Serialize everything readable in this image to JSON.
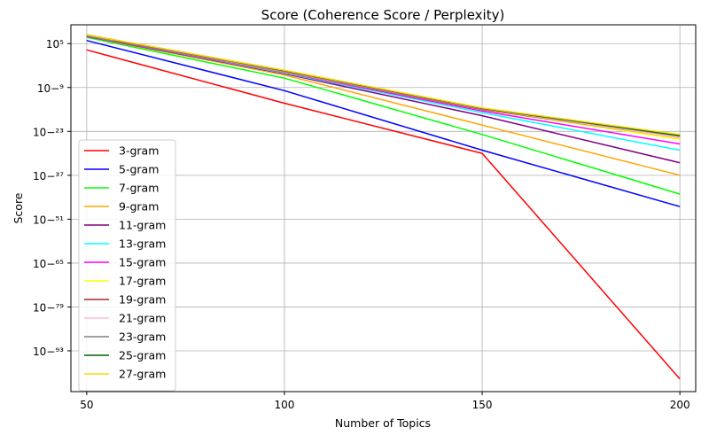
{
  "chart_data": {
    "type": "line",
    "title": "Score (Coherence Score / Perplexity)",
    "xlabel": "Number of Topics",
    "ylabel": "Score",
    "yscale": "log",
    "x": [
      50,
      100,
      150,
      200
    ],
    "xticks": [
      50,
      100,
      150,
      200
    ],
    "xlim": [
      46,
      204
    ],
    "ylim_log10": [
      -106,
      11
    ],
    "yticks_log10": [
      5,
      -9,
      -23,
      -37,
      -51,
      -65,
      -79,
      -93
    ],
    "grid": true,
    "legend_position": "lower-left",
    "series": [
      {
        "name": "3-gram",
        "color": "#ff0000",
        "log10_values": [
          3.0,
          -14.0,
          -30.0,
          -102.0
        ]
      },
      {
        "name": "5-gram",
        "color": "#0000ff",
        "log10_values": [
          6.0,
          -10.0,
          -29.0,
          -47.0
        ]
      },
      {
        "name": "7-gram",
        "color": "#00ff00",
        "log10_values": [
          7.0,
          -6.0,
          -24.0,
          -43.0
        ]
      },
      {
        "name": "9-gram",
        "color": "#ffa500",
        "log10_values": [
          7.2,
          -5.0,
          -21.0,
          -37.0
        ]
      },
      {
        "name": "11-gram",
        "color": "#800080",
        "log10_values": [
          7.3,
          -4.6,
          -18.0,
          -33.0
        ]
      },
      {
        "name": "13-gram",
        "color": "#00ffff",
        "log10_values": [
          7.4,
          -4.4,
          -17.0,
          -29.0
        ]
      },
      {
        "name": "15-gram",
        "color": "#ff00ff",
        "log10_values": [
          7.5,
          -4.2,
          -16.5,
          -27.0
        ]
      },
      {
        "name": "17-gram",
        "color": "#ffff00",
        "log10_values": [
          7.6,
          -4.0,
          -16.0,
          -25.5
        ]
      },
      {
        "name": "19-gram",
        "color": "#a52a2a",
        "log10_values": [
          7.6,
          -3.9,
          -16.0,
          -25.0
        ]
      },
      {
        "name": "21-gram",
        "color": "#ffc0cb",
        "log10_values": [
          7.7,
          -3.8,
          -15.8,
          -25.0
        ]
      },
      {
        "name": "23-gram",
        "color": "#808080",
        "log10_values": [
          7.7,
          -3.7,
          -15.7,
          -24.5
        ]
      },
      {
        "name": "25-gram",
        "color": "#006400",
        "log10_values": [
          7.8,
          -3.6,
          -15.6,
          -24.3
        ]
      },
      {
        "name": "27-gram",
        "color": "#ffd700",
        "log10_values": [
          7.8,
          -3.5,
          -15.5,
          -24.0
        ]
      }
    ]
  }
}
